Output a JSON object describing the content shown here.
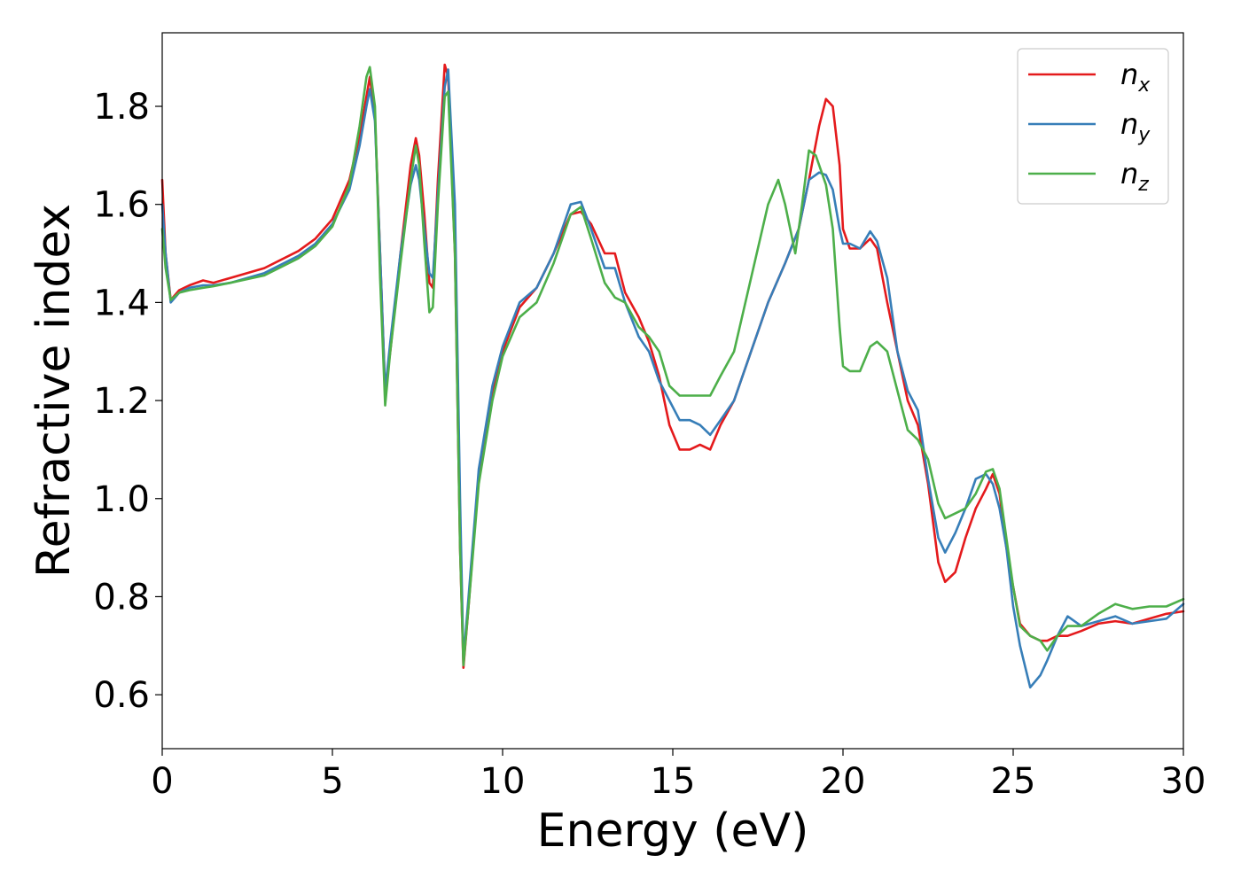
{
  "chart_data": {
    "type": "line",
    "title": "",
    "xlabel": "Energy (eV)",
    "ylabel": "Refractive index",
    "xlim": [
      0,
      30
    ],
    "ylim": [
      0.49,
      1.95
    ],
    "xticks": [
      0,
      5,
      10,
      15,
      20,
      25,
      30
    ],
    "xtick_labels": [
      "0",
      "5",
      "10",
      "15",
      "20",
      "25",
      "30"
    ],
    "yticks": [
      0.6,
      0.8,
      1.0,
      1.2,
      1.4,
      1.6,
      1.8
    ],
    "ytick_labels": [
      "0.6",
      "0.8",
      "1.0",
      "1.2",
      "1.4",
      "1.6",
      "1.8"
    ],
    "grid": false,
    "legend_position": "top-right",
    "series": [
      {
        "name": "n_x",
        "label_base": "n",
        "label_sub": "x",
        "color": "#e41a1c",
        "points": [
          [
            0,
            1.65
          ],
          [
            0.1,
            1.5
          ],
          [
            0.25,
            1.405
          ],
          [
            0.5,
            1.425
          ],
          [
            0.8,
            1.435
          ],
          [
            1.2,
            1.445
          ],
          [
            1.5,
            1.44
          ],
          [
            2,
            1.45
          ],
          [
            3,
            1.47
          ],
          [
            4,
            1.505
          ],
          [
            4.5,
            1.53
          ],
          [
            5,
            1.57
          ],
          [
            5.5,
            1.65
          ],
          [
            5.8,
            1.74
          ],
          [
            6.0,
            1.82
          ],
          [
            6.1,
            1.86
          ],
          [
            6.25,
            1.78
          ],
          [
            6.4,
            1.5
          ],
          [
            6.55,
            1.22
          ],
          [
            6.7,
            1.3
          ],
          [
            7.0,
            1.5
          ],
          [
            7.3,
            1.68
          ],
          [
            7.45,
            1.735
          ],
          [
            7.55,
            1.7
          ],
          [
            7.7,
            1.58
          ],
          [
            7.85,
            1.44
          ],
          [
            7.95,
            1.43
          ],
          [
            8.1,
            1.65
          ],
          [
            8.3,
            1.885
          ],
          [
            8.4,
            1.86
          ],
          [
            8.6,
            1.5
          ],
          [
            8.75,
            0.9
          ],
          [
            8.85,
            0.655
          ],
          [
            9.0,
            0.78
          ],
          [
            9.3,
            1.05
          ],
          [
            9.7,
            1.22
          ],
          [
            10,
            1.3
          ],
          [
            10.5,
            1.39
          ],
          [
            11,
            1.43
          ],
          [
            11.5,
            1.5
          ],
          [
            12,
            1.58
          ],
          [
            12.3,
            1.585
          ],
          [
            12.6,
            1.56
          ],
          [
            13,
            1.5
          ],
          [
            13.3,
            1.5
          ],
          [
            13.6,
            1.42
          ],
          [
            14,
            1.37
          ],
          [
            14.3,
            1.32
          ],
          [
            14.6,
            1.25
          ],
          [
            14.9,
            1.15
          ],
          [
            15.2,
            1.1
          ],
          [
            15.5,
            1.1
          ],
          [
            15.8,
            1.11
          ],
          [
            16.1,
            1.1
          ],
          [
            16.4,
            1.15
          ],
          [
            16.8,
            1.2
          ],
          [
            17.3,
            1.3
          ],
          [
            17.8,
            1.4
          ],
          [
            18.3,
            1.48
          ],
          [
            18.7,
            1.55
          ],
          [
            19.0,
            1.65
          ],
          [
            19.3,
            1.76
          ],
          [
            19.5,
            1.815
          ],
          [
            19.7,
            1.8
          ],
          [
            19.9,
            1.68
          ],
          [
            20.0,
            1.55
          ],
          [
            20.2,
            1.51
          ],
          [
            20.5,
            1.51
          ],
          [
            20.8,
            1.53
          ],
          [
            21.0,
            1.51
          ],
          [
            21.3,
            1.4
          ],
          [
            21.6,
            1.3
          ],
          [
            21.9,
            1.2
          ],
          [
            22.2,
            1.15
          ],
          [
            22.5,
            1.03
          ],
          [
            22.8,
            0.87
          ],
          [
            23.0,
            0.83
          ],
          [
            23.3,
            0.85
          ],
          [
            23.6,
            0.92
          ],
          [
            23.9,
            0.98
          ],
          [
            24.2,
            1.02
          ],
          [
            24.4,
            1.05
          ],
          [
            24.6,
            1.01
          ],
          [
            24.8,
            0.9
          ],
          [
            25.0,
            0.82
          ],
          [
            25.2,
            0.745
          ],
          [
            25.5,
            0.72
          ],
          [
            25.8,
            0.71
          ],
          [
            26.0,
            0.71
          ],
          [
            26.3,
            0.72
          ],
          [
            26.6,
            0.72
          ],
          [
            27.0,
            0.73
          ],
          [
            27.5,
            0.745
          ],
          [
            28.0,
            0.75
          ],
          [
            28.5,
            0.745
          ],
          [
            29.0,
            0.755
          ],
          [
            29.5,
            0.765
          ],
          [
            30,
            0.77
          ]
        ]
      },
      {
        "name": "n_y",
        "label_base": "n",
        "label_sub": "y",
        "color": "#377eb8",
        "points": [
          [
            0,
            1.6
          ],
          [
            0.1,
            1.5
          ],
          [
            0.25,
            1.4
          ],
          [
            0.5,
            1.42
          ],
          [
            0.8,
            1.43
          ],
          [
            1.2,
            1.435
          ],
          [
            1.5,
            1.435
          ],
          [
            2,
            1.44
          ],
          [
            3,
            1.46
          ],
          [
            4,
            1.495
          ],
          [
            4.5,
            1.52
          ],
          [
            5,
            1.56
          ],
          [
            5.5,
            1.63
          ],
          [
            5.8,
            1.72
          ],
          [
            6.0,
            1.8
          ],
          [
            6.1,
            1.835
          ],
          [
            6.25,
            1.77
          ],
          [
            6.4,
            1.5
          ],
          [
            6.55,
            1.22
          ],
          [
            6.7,
            1.32
          ],
          [
            7.0,
            1.5
          ],
          [
            7.3,
            1.64
          ],
          [
            7.45,
            1.68
          ],
          [
            7.55,
            1.65
          ],
          [
            7.7,
            1.55
          ],
          [
            7.85,
            1.46
          ],
          [
            7.95,
            1.45
          ],
          [
            8.1,
            1.62
          ],
          [
            8.3,
            1.84
          ],
          [
            8.4,
            1.875
          ],
          [
            8.6,
            1.6
          ],
          [
            8.75,
            1.0
          ],
          [
            8.85,
            0.67
          ],
          [
            9.0,
            0.8
          ],
          [
            9.3,
            1.06
          ],
          [
            9.7,
            1.23
          ],
          [
            10,
            1.31
          ],
          [
            10.5,
            1.4
          ],
          [
            11,
            1.43
          ],
          [
            11.5,
            1.5
          ],
          [
            12,
            1.6
          ],
          [
            12.3,
            1.605
          ],
          [
            12.6,
            1.55
          ],
          [
            13,
            1.47
          ],
          [
            13.3,
            1.47
          ],
          [
            13.6,
            1.4
          ],
          [
            14,
            1.33
          ],
          [
            14.3,
            1.3
          ],
          [
            14.6,
            1.24
          ],
          [
            14.9,
            1.2
          ],
          [
            15.2,
            1.16
          ],
          [
            15.5,
            1.16
          ],
          [
            15.8,
            1.15
          ],
          [
            16.1,
            1.13
          ],
          [
            16.4,
            1.16
          ],
          [
            16.8,
            1.2
          ],
          [
            17.3,
            1.3
          ],
          [
            17.8,
            1.4
          ],
          [
            18.3,
            1.48
          ],
          [
            18.7,
            1.55
          ],
          [
            19.0,
            1.65
          ],
          [
            19.3,
            1.665
          ],
          [
            19.5,
            1.66
          ],
          [
            19.7,
            1.63
          ],
          [
            19.9,
            1.55
          ],
          [
            20.0,
            1.52
          ],
          [
            20.2,
            1.52
          ],
          [
            20.5,
            1.51
          ],
          [
            20.8,
            1.545
          ],
          [
            21.0,
            1.525
          ],
          [
            21.3,
            1.45
          ],
          [
            21.6,
            1.3
          ],
          [
            21.9,
            1.22
          ],
          [
            22.2,
            1.18
          ],
          [
            22.5,
            1.04
          ],
          [
            22.8,
            0.92
          ],
          [
            23.0,
            0.89
          ],
          [
            23.3,
            0.93
          ],
          [
            23.6,
            0.98
          ],
          [
            23.9,
            1.04
          ],
          [
            24.2,
            1.05
          ],
          [
            24.4,
            1.03
          ],
          [
            24.6,
            0.98
          ],
          [
            24.8,
            0.9
          ],
          [
            25.0,
            0.78
          ],
          [
            25.2,
            0.7
          ],
          [
            25.5,
            0.615
          ],
          [
            25.8,
            0.64
          ],
          [
            26.0,
            0.67
          ],
          [
            26.3,
            0.72
          ],
          [
            26.6,
            0.76
          ],
          [
            27.0,
            0.74
          ],
          [
            27.5,
            0.75
          ],
          [
            28.0,
            0.76
          ],
          [
            28.5,
            0.745
          ],
          [
            29.0,
            0.75
          ],
          [
            29.5,
            0.755
          ],
          [
            30,
            0.785
          ]
        ]
      },
      {
        "name": "n_z",
        "label_base": "n",
        "label_sub": "z",
        "color": "#4daf4a",
        "points": [
          [
            0,
            1.55
          ],
          [
            0.1,
            1.47
          ],
          [
            0.25,
            1.405
          ],
          [
            0.5,
            1.42
          ],
          [
            0.8,
            1.425
          ],
          [
            1.2,
            1.43
          ],
          [
            1.5,
            1.433
          ],
          [
            2,
            1.44
          ],
          [
            3,
            1.455
          ],
          [
            4,
            1.49
          ],
          [
            4.5,
            1.515
          ],
          [
            5,
            1.555
          ],
          [
            5.5,
            1.64
          ],
          [
            5.8,
            1.76
          ],
          [
            6.0,
            1.86
          ],
          [
            6.1,
            1.88
          ],
          [
            6.25,
            1.8
          ],
          [
            6.4,
            1.45
          ],
          [
            6.55,
            1.19
          ],
          [
            6.7,
            1.3
          ],
          [
            7.0,
            1.48
          ],
          [
            7.3,
            1.65
          ],
          [
            7.45,
            1.72
          ],
          [
            7.55,
            1.68
          ],
          [
            7.7,
            1.52
          ],
          [
            7.85,
            1.38
          ],
          [
            7.95,
            1.39
          ],
          [
            8.1,
            1.6
          ],
          [
            8.3,
            1.82
          ],
          [
            8.4,
            1.83
          ],
          [
            8.6,
            1.5
          ],
          [
            8.75,
            0.9
          ],
          [
            8.85,
            0.66
          ],
          [
            9.0,
            0.78
          ],
          [
            9.3,
            1.03
          ],
          [
            9.7,
            1.2
          ],
          [
            10,
            1.29
          ],
          [
            10.5,
            1.37
          ],
          [
            11,
            1.4
          ],
          [
            11.5,
            1.48
          ],
          [
            12,
            1.58
          ],
          [
            12.3,
            1.595
          ],
          [
            12.6,
            1.53
          ],
          [
            13,
            1.44
          ],
          [
            13.3,
            1.41
          ],
          [
            13.6,
            1.4
          ],
          [
            14,
            1.35
          ],
          [
            14.3,
            1.33
          ],
          [
            14.6,
            1.3
          ],
          [
            14.9,
            1.23
          ],
          [
            15.2,
            1.21
          ],
          [
            15.5,
            1.21
          ],
          [
            15.8,
            1.21
          ],
          [
            16.1,
            1.21
          ],
          [
            16.4,
            1.25
          ],
          [
            16.8,
            1.3
          ],
          [
            17.3,
            1.45
          ],
          [
            17.8,
            1.6
          ],
          [
            18.1,
            1.65
          ],
          [
            18.3,
            1.6
          ],
          [
            18.6,
            1.5
          ],
          [
            18.8,
            1.6
          ],
          [
            19.0,
            1.71
          ],
          [
            19.2,
            1.7
          ],
          [
            19.5,
            1.64
          ],
          [
            19.7,
            1.55
          ],
          [
            19.9,
            1.35
          ],
          [
            20.0,
            1.27
          ],
          [
            20.2,
            1.26
          ],
          [
            20.5,
            1.26
          ],
          [
            20.8,
            1.31
          ],
          [
            21.0,
            1.32
          ],
          [
            21.3,
            1.3
          ],
          [
            21.6,
            1.22
          ],
          [
            21.9,
            1.14
          ],
          [
            22.2,
            1.12
          ],
          [
            22.5,
            1.08
          ],
          [
            22.8,
            0.99
          ],
          [
            23.0,
            0.96
          ],
          [
            23.3,
            0.97
          ],
          [
            23.6,
            0.98
          ],
          [
            23.9,
            1.01
          ],
          [
            24.2,
            1.055
          ],
          [
            24.4,
            1.06
          ],
          [
            24.6,
            1.02
          ],
          [
            24.8,
            0.92
          ],
          [
            25.0,
            0.82
          ],
          [
            25.2,
            0.74
          ],
          [
            25.5,
            0.72
          ],
          [
            25.8,
            0.71
          ],
          [
            26.0,
            0.69
          ],
          [
            26.3,
            0.72
          ],
          [
            26.6,
            0.74
          ],
          [
            27.0,
            0.74
          ],
          [
            27.5,
            0.765
          ],
          [
            28.0,
            0.785
          ],
          [
            28.5,
            0.775
          ],
          [
            29.0,
            0.78
          ],
          [
            29.5,
            0.78
          ],
          [
            30,
            0.795
          ]
        ]
      }
    ]
  }
}
